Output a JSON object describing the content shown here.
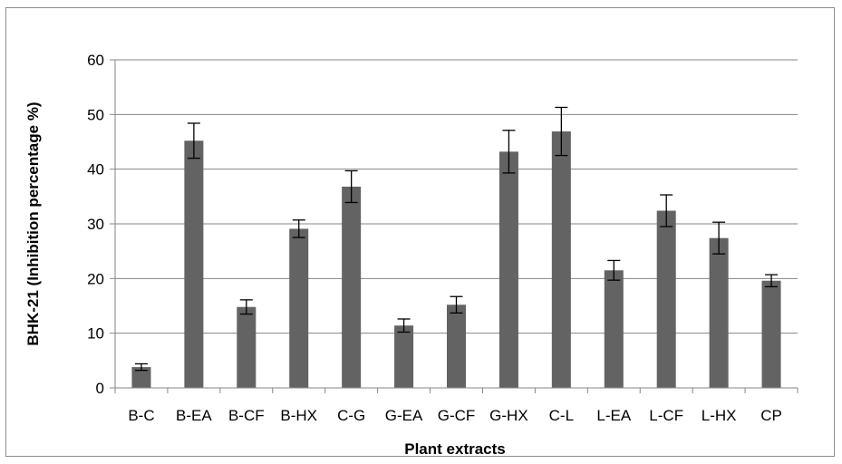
{
  "chart_data": {
    "type": "bar",
    "title": "",
    "xlabel": "Plant extracts",
    "ylabel": "BHK-21 (Inhibition percentage %)",
    "ylim": [
      0,
      60
    ],
    "yticks": [
      0,
      10,
      20,
      30,
      40,
      50,
      60
    ],
    "grid": true,
    "legend": "none",
    "categories": [
      "B-C",
      "B-EA",
      "B-CF",
      "B-HX",
      "C-G",
      "G-EA",
      "G-CF",
      "G-HX",
      "C-L",
      "L-EA",
      "L-CF",
      "L-HX",
      "CP"
    ],
    "series": [
      {
        "values": [
          3.8,
          45.2,
          14.8,
          29.1,
          36.8,
          11.4,
          15.2,
          43.2,
          46.9,
          21.5,
          32.4,
          27.4,
          19.6
        ],
        "error": [
          0.6,
          3.2,
          1.3,
          1.6,
          2.9,
          1.2,
          1.5,
          3.9,
          4.4,
          1.8,
          2.9,
          2.9,
          1.1
        ]
      }
    ],
    "colors": {
      "bar": "#636363",
      "grid": "#858585",
      "axis": "#858585",
      "error_bar": "#000000"
    }
  }
}
